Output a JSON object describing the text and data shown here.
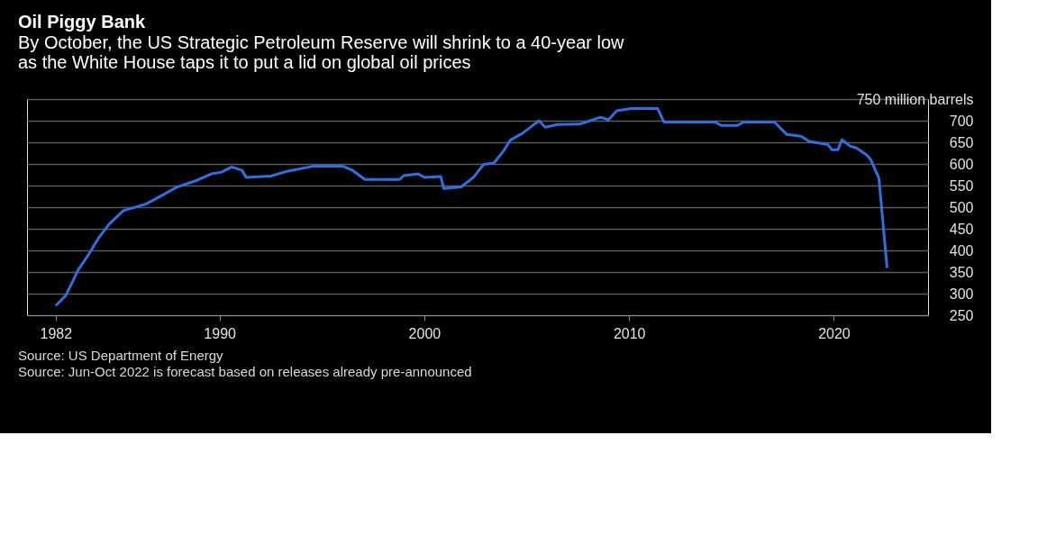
{
  "chart_data": {
    "type": "line",
    "title": "Oil Piggy Bank",
    "subtitle": "By October, the US Strategic Petroleum Reserve will shrink to a 40-year low\nas the White House taps it to put a lid on global oil prices",
    "annotations": [
      "Source: US Department of Energy",
      "Source: Jun-Oct 2022 is forecast based on releases already pre-announced"
    ],
    "x": [
      1982.0,
      1982.5,
      1983.1,
      1983.55,
      1984.1,
      1984.6,
      1985.3,
      1986.4,
      1987.3,
      1987.9,
      1988.9,
      1989.6,
      1990.1,
      1990.6,
      1991.1,
      1991.3,
      1992.5,
      1993.3,
      1994.6,
      1996.0,
      1996.5,
      1997.1,
      1998.8,
      1999.0,
      1999.7,
      2000.0,
      2000.8,
      2000.95,
      2001.8,
      2002.4,
      2002.9,
      2003.4,
      2003.9,
      2004.2,
      2004.8,
      2005.6,
      2005.9,
      2006.5,
      2007.6,
      2008.6,
      2009.0,
      2009.4,
      2010.1,
      2011.4,
      2011.7,
      2014.2,
      2014.5,
      2015.3,
      2015.6,
      2017.1,
      2017.7,
      2018.4,
      2018.8,
      2019.7,
      2019.9,
      2020.2,
      2020.4,
      2020.8,
      2021.1,
      2021.6,
      2021.8,
      2022.2,
      2022.6
    ],
    "series": [
      {
        "color": "#2f6fe0",
        "values": [
          272,
          296,
          355,
          386,
          429,
          460,
          492,
          507,
          530,
          546,
          562,
          577,
          581,
          593,
          585,
          569,
          572,
          583,
          595,
          595,
          585,
          564,
          564,
          573,
          577,
          569,
          571,
          543,
          547,
          569,
          599,
          602,
          632,
          655,
          671,
          700,
          685,
          691,
          692,
          708,
          702,
          723,
          728,
          728,
          697,
          697,
          689,
          689,
          697,
          697,
          668,
          664,
          652,
          645,
          633,
          633,
          656,
          641,
          637,
          621,
          610,
          567,
          359
        ]
      }
    ],
    "xlim": [
      1980.6,
      2024.6
    ],
    "xticks": [
      1982,
      1990,
      2000,
      2010,
      2020
    ],
    "ylim": [
      250,
      750
    ],
    "yticks": [
      250,
      300,
      350,
      400,
      450,
      500,
      550,
      600,
      650,
      700,
      {
        "value": 750,
        "label": "750 million barrels"
      }
    ],
    "grid": "y",
    "line_style": "solid"
  }
}
